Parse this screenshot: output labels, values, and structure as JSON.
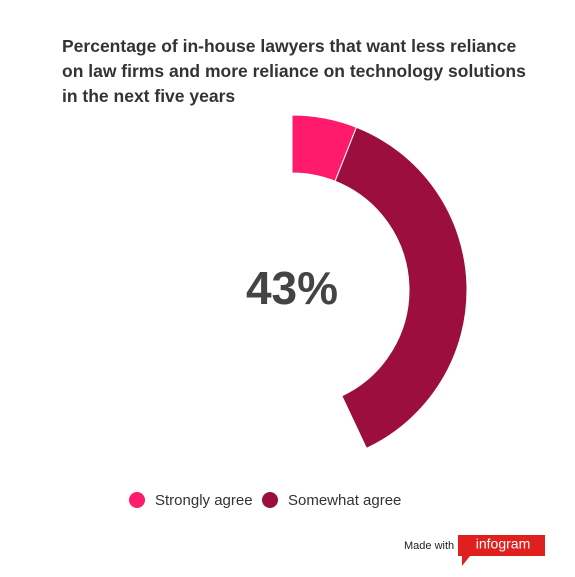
{
  "chart_data": {
    "type": "donut",
    "title": "Percentage of in-house lawyers that want less reliance on law firms and more reliance on technology solutions in the next five years",
    "center_label": "43%",
    "series": [
      {
        "name": "Strongly agree",
        "color": "#ff1a6b",
        "value": 6
      },
      {
        "name": "Somewhat agree",
        "color": "#9b0e3e",
        "value": 37
      }
    ]
  },
  "footer": {
    "made_with": "Made with",
    "brand": "infogram"
  }
}
